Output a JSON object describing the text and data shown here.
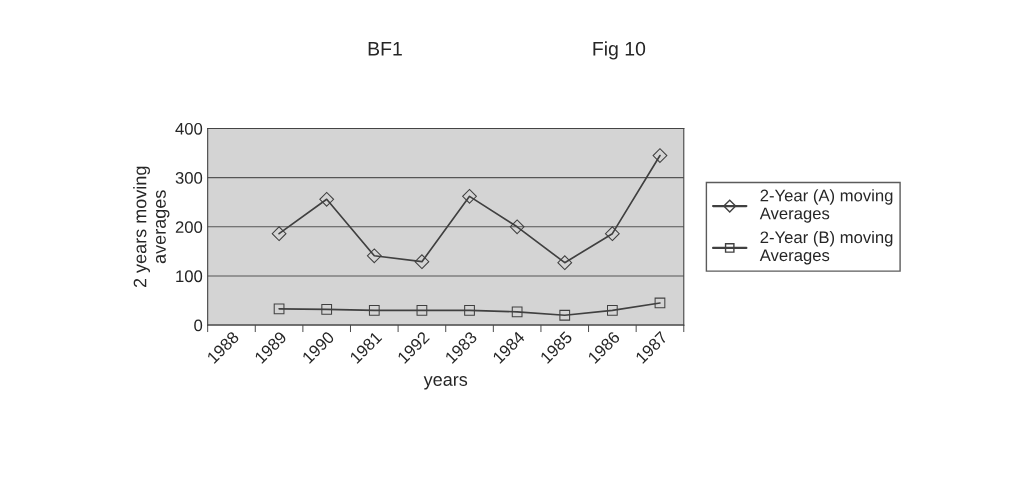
{
  "chart_data": {
    "type": "line",
    "title": "BF1                                   Fig 10",
    "xlabel": "years",
    "ylabel": "2 years moving\naverages",
    "categories": [
      "1988",
      "1989",
      "1990",
      "1981",
      "1992",
      "1983",
      "1984",
      "1985",
      "1986",
      "1987"
    ],
    "series": [
      {
        "name": "2-Year (A) moving\nAverages",
        "color": "#404040",
        "marker": "diamond",
        "values": [
          null,
          186,
          256,
          141,
          129,
          262,
          200,
          127,
          186,
          345
        ]
      },
      {
        "name": "2-Year (B) moving\nAverages",
        "color": "#404040",
        "marker": "square",
        "values": [
          null,
          33,
          32,
          30,
          30,
          30,
          27,
          20,
          30,
          45
        ]
      }
    ],
    "ylim": [
      0,
      400
    ],
    "yticks": [
      0,
      100,
      200,
      300,
      400
    ],
    "grid": "y",
    "legend": "right"
  }
}
